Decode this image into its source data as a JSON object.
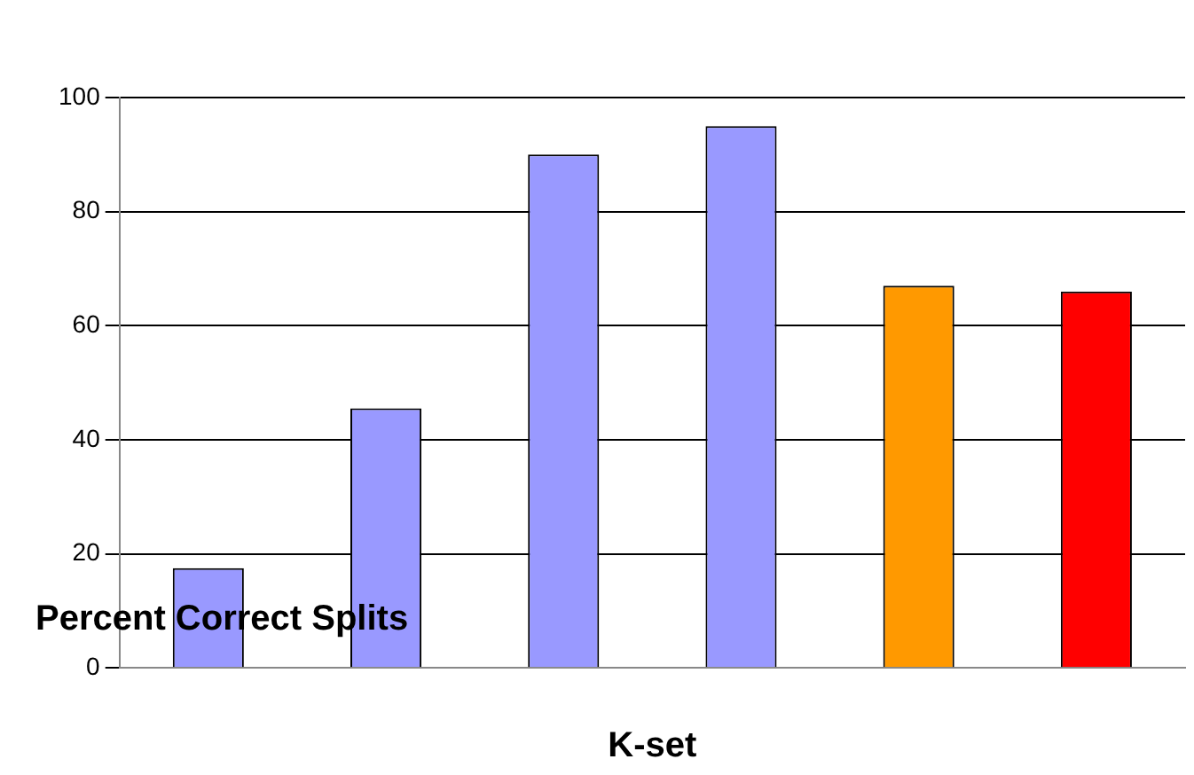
{
  "chart_data": {
    "type": "bar",
    "xlabel": "K-set",
    "ylabel": "Percent Correct Splits",
    "categories": [
      null,
      null,
      null,
      null,
      null,
      null
    ],
    "values": [
      17.5,
      45.5,
      90,
      95,
      67,
      66
    ],
    "colors": [
      "#9999ff",
      "#9999ff",
      "#9999ff",
      "#9999ff",
      "#ff9900",
      "#ff0000"
    ],
    "ylim": [
      0,
      100
    ],
    "yticks": [
      0,
      20,
      40,
      60,
      80,
      100
    ],
    "grid": "y",
    "legend": false
  }
}
